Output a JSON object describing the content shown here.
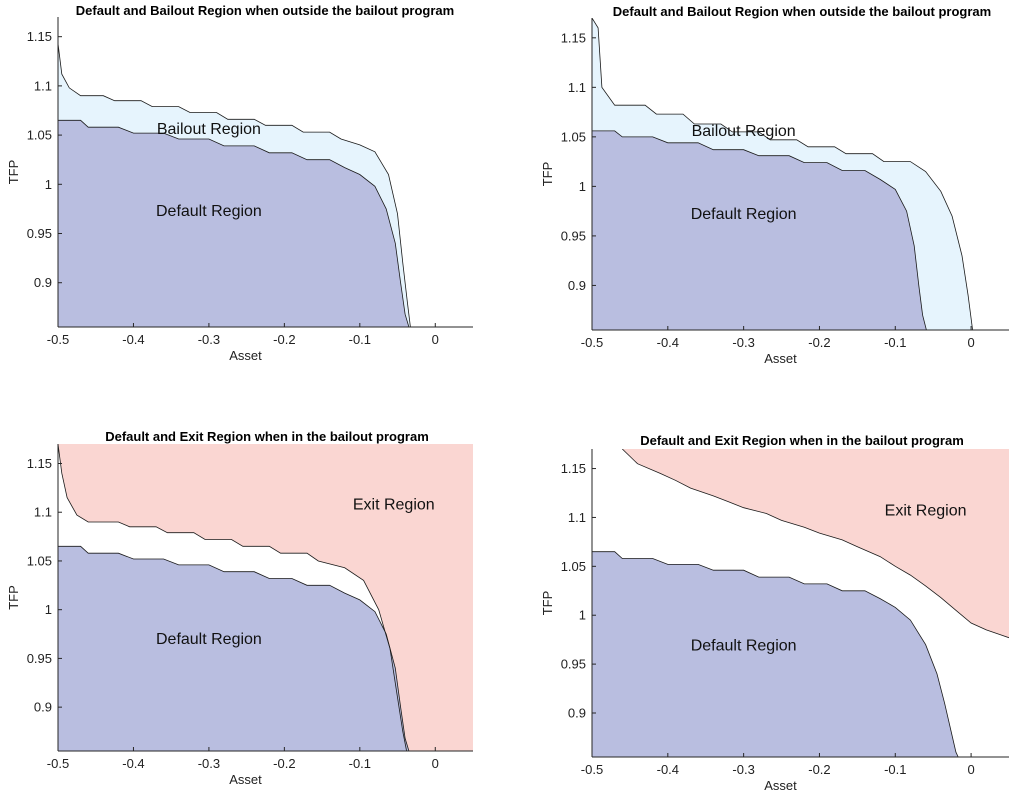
{
  "colors": {
    "default_region": "#b9bee0",
    "bailout_region": "#e6f4fd",
    "exit_region": "#fad6d2",
    "boundary": "#1a1a1a"
  },
  "chart_data": [
    {
      "type": "area",
      "title": "Default and Bailout Region when outside the bailout program",
      "xlabel": "Asset",
      "ylabel": "TFP",
      "xlim": [
        -0.5,
        0.05
      ],
      "ylim": [
        0.855,
        1.17
      ],
      "xticks": [
        "-0.5",
        "-0.4",
        "-0.3",
        "-0.2",
        "-0.1",
        "0"
      ],
      "yticks": [
        "0.9",
        "0.95",
        "1",
        "1.05",
        "1.1",
        "1.15"
      ],
      "grid": false,
      "labels": [
        {
          "text": "Bailout Region",
          "x": -0.3,
          "y": 1.056
        },
        {
          "text": "Default Region",
          "x": -0.3,
          "y": 0.973
        }
      ],
      "default_boundary": [
        [
          -0.5,
          1.065
        ],
        [
          -0.47,
          1.065
        ],
        [
          -0.46,
          1.058
        ],
        [
          -0.42,
          1.058
        ],
        [
          -0.4,
          1.052
        ],
        [
          -0.36,
          1.052
        ],
        [
          -0.34,
          1.046
        ],
        [
          -0.3,
          1.046
        ],
        [
          -0.28,
          1.039
        ],
        [
          -0.24,
          1.039
        ],
        [
          -0.22,
          1.032
        ],
        [
          -0.19,
          1.032
        ],
        [
          -0.17,
          1.025
        ],
        [
          -0.14,
          1.025
        ],
        [
          -0.12,
          1.017
        ],
        [
          -0.1,
          1.01
        ],
        [
          -0.08,
          0.998
        ],
        [
          -0.065,
          0.975
        ],
        [
          -0.053,
          0.94
        ],
        [
          -0.046,
          0.9
        ],
        [
          -0.04,
          0.868
        ],
        [
          -0.035,
          0.855
        ]
      ],
      "bailout_boundary": [
        [
          -0.5,
          1.143
        ],
        [
          -0.495,
          1.112
        ],
        [
          -0.485,
          1.098
        ],
        [
          -0.47,
          1.09
        ],
        [
          -0.44,
          1.09
        ],
        [
          -0.425,
          1.085
        ],
        [
          -0.39,
          1.085
        ],
        [
          -0.375,
          1.079
        ],
        [
          -0.34,
          1.079
        ],
        [
          -0.325,
          1.073
        ],
        [
          -0.29,
          1.073
        ],
        [
          -0.275,
          1.066
        ],
        [
          -0.24,
          1.066
        ],
        [
          -0.225,
          1.06
        ],
        [
          -0.19,
          1.06
        ],
        [
          -0.175,
          1.053
        ],
        [
          -0.14,
          1.053
        ],
        [
          -0.125,
          1.046
        ],
        [
          -0.1,
          1.04
        ],
        [
          -0.08,
          1.033
        ],
        [
          -0.062,
          1.01
        ],
        [
          -0.05,
          0.97
        ],
        [
          -0.043,
          0.92
        ],
        [
          -0.037,
          0.88
        ],
        [
          -0.033,
          0.855
        ]
      ],
      "exit_boundary": []
    },
    {
      "type": "area",
      "title": "Default and Bailout Region when outside the bailout program",
      "xlabel": "Asset",
      "ylabel": "TFP",
      "xlim": [
        -0.5,
        0.05
      ],
      "ylim": [
        0.855,
        1.17
      ],
      "xticks": [
        "-0.5",
        "-0.4",
        "-0.3",
        "-0.2",
        "-0.1",
        "0"
      ],
      "yticks": [
        "0.9",
        "0.95",
        "1",
        "1.05",
        "1.1",
        "1.15"
      ],
      "grid": false,
      "labels": [
        {
          "text": "Bailout Region",
          "x": -0.3,
          "y": 1.056
        },
        {
          "text": "Default Region",
          "x": -0.3,
          "y": 0.972
        }
      ],
      "default_boundary": [
        [
          -0.5,
          1.056
        ],
        [
          -0.47,
          1.056
        ],
        [
          -0.46,
          1.05
        ],
        [
          -0.42,
          1.05
        ],
        [
          -0.4,
          1.044
        ],
        [
          -0.36,
          1.044
        ],
        [
          -0.34,
          1.037
        ],
        [
          -0.3,
          1.037
        ],
        [
          -0.28,
          1.031
        ],
        [
          -0.24,
          1.031
        ],
        [
          -0.22,
          1.024
        ],
        [
          -0.19,
          1.024
        ],
        [
          -0.17,
          1.016
        ],
        [
          -0.14,
          1.016
        ],
        [
          -0.12,
          1.007
        ],
        [
          -0.1,
          0.997
        ],
        [
          -0.085,
          0.975
        ],
        [
          -0.075,
          0.94
        ],
        [
          -0.069,
          0.9
        ],
        [
          -0.064,
          0.87
        ],
        [
          -0.059,
          0.855
        ]
      ],
      "bailout_boundary": [
        [
          -0.5,
          1.17
        ],
        [
          -0.492,
          1.16
        ],
        [
          -0.487,
          1.1
        ],
        [
          -0.47,
          1.082
        ],
        [
          -0.43,
          1.082
        ],
        [
          -0.415,
          1.073
        ],
        [
          -0.38,
          1.073
        ],
        [
          -0.365,
          1.063
        ],
        [
          -0.33,
          1.063
        ],
        [
          -0.315,
          1.055
        ],
        [
          -0.28,
          1.055
        ],
        [
          -0.265,
          1.047
        ],
        [
          -0.23,
          1.047
        ],
        [
          -0.215,
          1.04
        ],
        [
          -0.18,
          1.04
        ],
        [
          -0.165,
          1.033
        ],
        [
          -0.13,
          1.033
        ],
        [
          -0.115,
          1.025
        ],
        [
          -0.08,
          1.025
        ],
        [
          -0.06,
          1.015
        ],
        [
          -0.04,
          0.995
        ],
        [
          -0.025,
          0.97
        ],
        [
          -0.012,
          0.93
        ],
        [
          -0.004,
          0.89
        ],
        [
          0.002,
          0.855
        ]
      ],
      "exit_boundary": []
    },
    {
      "type": "area",
      "title": "Default and Exit Region when in the bailout program",
      "xlabel": "Asset",
      "ylabel": "TFP",
      "xlim": [
        -0.5,
        0.05
      ],
      "ylim": [
        0.855,
        1.17
      ],
      "xticks": [
        "-0.5",
        "-0.4",
        "-0.3",
        "-0.2",
        "-0.1",
        "0"
      ],
      "yticks": [
        "0.9",
        "0.95",
        "1",
        "1.05",
        "1.1",
        "1.15"
      ],
      "grid": false,
      "labels": [
        {
          "text": "Exit Region",
          "x": -0.055,
          "y": 1.108
        },
        {
          "text": "Default Region",
          "x": -0.3,
          "y": 0.97
        }
      ],
      "default_boundary": [
        [
          -0.5,
          1.065
        ],
        [
          -0.47,
          1.065
        ],
        [
          -0.46,
          1.058
        ],
        [
          -0.42,
          1.058
        ],
        [
          -0.4,
          1.052
        ],
        [
          -0.36,
          1.052
        ],
        [
          -0.34,
          1.046
        ],
        [
          -0.3,
          1.046
        ],
        [
          -0.28,
          1.039
        ],
        [
          -0.24,
          1.039
        ],
        [
          -0.22,
          1.032
        ],
        [
          -0.19,
          1.032
        ],
        [
          -0.17,
          1.025
        ],
        [
          -0.14,
          1.025
        ],
        [
          -0.12,
          1.017
        ],
        [
          -0.1,
          1.01
        ],
        [
          -0.08,
          0.998
        ],
        [
          -0.065,
          0.975
        ],
        [
          -0.053,
          0.94
        ],
        [
          -0.046,
          0.9
        ],
        [
          -0.04,
          0.868
        ],
        [
          -0.035,
          0.855
        ]
      ],
      "bailout_boundary": [],
      "exit_boundary": [
        [
          -0.5,
          1.17
        ],
        [
          -0.495,
          1.14
        ],
        [
          -0.488,
          1.115
        ],
        [
          -0.475,
          1.097
        ],
        [
          -0.46,
          1.09
        ],
        [
          -0.42,
          1.09
        ],
        [
          -0.405,
          1.085
        ],
        [
          -0.37,
          1.085
        ],
        [
          -0.355,
          1.079
        ],
        [
          -0.32,
          1.079
        ],
        [
          -0.305,
          1.072
        ],
        [
          -0.27,
          1.072
        ],
        [
          -0.255,
          1.065
        ],
        [
          -0.22,
          1.065
        ],
        [
          -0.205,
          1.058
        ],
        [
          -0.17,
          1.058
        ],
        [
          -0.155,
          1.05
        ],
        [
          -0.12,
          1.043
        ],
        [
          -0.095,
          1.03
        ],
        [
          -0.075,
          1.0
        ],
        [
          -0.06,
          0.96
        ],
        [
          -0.05,
          0.91
        ],
        [
          -0.043,
          0.875
        ],
        [
          -0.038,
          0.855
        ]
      ]
    },
    {
      "type": "area",
      "title": "Default and Exit Region when in the bailout program",
      "xlabel": "Asset",
      "ylabel": "TFP",
      "xlim": [
        -0.5,
        0.05
      ],
      "ylim": [
        0.855,
        1.17
      ],
      "xticks": [
        "-0.5",
        "-0.4",
        "-0.3",
        "-0.2",
        "-0.1",
        "0"
      ],
      "yticks": [
        "0.9",
        "0.95",
        "1",
        "1.05",
        "1.1",
        "1.15"
      ],
      "grid": false,
      "labels": [
        {
          "text": "Exit Region",
          "x": -0.06,
          "y": 1.107
        },
        {
          "text": "Default Region",
          "x": -0.3,
          "y": 0.969
        }
      ],
      "default_boundary": [
        [
          -0.5,
          1.065
        ],
        [
          -0.47,
          1.065
        ],
        [
          -0.46,
          1.058
        ],
        [
          -0.42,
          1.058
        ],
        [
          -0.4,
          1.052
        ],
        [
          -0.36,
          1.052
        ],
        [
          -0.34,
          1.046
        ],
        [
          -0.3,
          1.046
        ],
        [
          -0.28,
          1.039
        ],
        [
          -0.24,
          1.039
        ],
        [
          -0.22,
          1.032
        ],
        [
          -0.19,
          1.032
        ],
        [
          -0.17,
          1.025
        ],
        [
          -0.14,
          1.025
        ],
        [
          -0.12,
          1.017
        ],
        [
          -0.1,
          1.008
        ],
        [
          -0.08,
          0.995
        ],
        [
          -0.06,
          0.97
        ],
        [
          -0.045,
          0.94
        ],
        [
          -0.035,
          0.91
        ],
        [
          -0.026,
          0.88
        ],
        [
          -0.02,
          0.86
        ],
        [
          -0.017,
          0.855
        ]
      ],
      "bailout_boundary": [],
      "exit_boundary": [
        [
          -0.46,
          1.17
        ],
        [
          -0.44,
          1.155
        ],
        [
          -0.41,
          1.145
        ],
        [
          -0.39,
          1.138
        ],
        [
          -0.37,
          1.13
        ],
        [
          -0.34,
          1.122
        ],
        [
          -0.32,
          1.116
        ],
        [
          -0.3,
          1.11
        ],
        [
          -0.27,
          1.104
        ],
        [
          -0.25,
          1.097
        ],
        [
          -0.22,
          1.09
        ],
        [
          -0.2,
          1.084
        ],
        [
          -0.17,
          1.077
        ],
        [
          -0.15,
          1.07
        ],
        [
          -0.12,
          1.06
        ],
        [
          -0.1,
          1.05
        ],
        [
          -0.08,
          1.041
        ],
        [
          -0.06,
          1.03
        ],
        [
          -0.04,
          1.018
        ],
        [
          -0.02,
          1.005
        ],
        [
          0.0,
          0.992
        ],
        [
          0.02,
          0.985
        ],
        [
          0.05,
          0.977
        ]
      ]
    }
  ]
}
